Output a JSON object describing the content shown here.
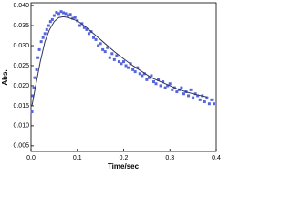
{
  "chart_data": {
    "type": "scatter",
    "xlabel": "Time/sec",
    "ylabel": "Abs.",
    "xlim": [
      0,
      0.4
    ],
    "xticks": [
      {
        "value": 0,
        "label": "0.0"
      },
      0.1,
      0.2,
      0.3,
      0.4
    ],
    "ylim": [
      0.0036,
      0.0407
    ],
    "yticks": [
      0.005,
      {
        "value": 0.01,
        "label": "0.010"
      },
      0.015,
      {
        "value": 0.02,
        "label": "0.020"
      },
      0.025,
      {
        "value": 0.03,
        "label": "0.030"
      },
      0.035,
      {
        "value": 0.04,
        "label": "0.040"
      }
    ],
    "series": [
      {
        "type": "scatter",
        "color": "#5566dd",
        "x": [
          0.002,
          0.004,
          0.006,
          0.008,
          0.012,
          0.015,
          0.018,
          0.022,
          0.026,
          0.03,
          0.034,
          0.038,
          0.042,
          0.046,
          0.05,
          0.055,
          0.06,
          0.065,
          0.07,
          0.075,
          0.08,
          0.085,
          0.09,
          0.095,
          0.1,
          0.105,
          0.11,
          0.115,
          0.12,
          0.125,
          0.13,
          0.135,
          0.14,
          0.145,
          0.15,
          0.155,
          0.16,
          0.165,
          0.17,
          0.175,
          0.18,
          0.185,
          0.19,
          0.195,
          0.2,
          0.205,
          0.21,
          0.215,
          0.22,
          0.225,
          0.23,
          0.235,
          0.24,
          0.245,
          0.25,
          0.255,
          0.26,
          0.265,
          0.27,
          0.275,
          0.28,
          0.285,
          0.29,
          0.295,
          0.3,
          0.305,
          0.31,
          0.315,
          0.32,
          0.325,
          0.33,
          0.335,
          0.34,
          0.345,
          0.35,
          0.355,
          0.36,
          0.365,
          0.37,
          0.375,
          0.38,
          0.385,
          0.39,
          0.395
        ],
        "values": [
          0.0135,
          0.0175,
          0.0195,
          0.022,
          0.024,
          0.027,
          0.029,
          0.031,
          0.032,
          0.033,
          0.034,
          0.035,
          0.036,
          0.0365,
          0.0375,
          0.0383,
          0.038,
          0.0385,
          0.0382,
          0.038,
          0.0375,
          0.0378,
          0.0368,
          0.037,
          0.0362,
          0.035,
          0.0355,
          0.0345,
          0.034,
          0.033,
          0.0335,
          0.032,
          0.0315,
          0.03,
          0.0305,
          0.029,
          0.0285,
          0.0295,
          0.027,
          0.028,
          0.0265,
          0.0275,
          0.026,
          0.0255,
          0.026,
          0.025,
          0.0245,
          0.0255,
          0.024,
          0.0235,
          0.0245,
          0.023,
          0.0225,
          0.023,
          0.0215,
          0.022,
          0.0225,
          0.021,
          0.0205,
          0.0215,
          0.02,
          0.021,
          0.0195,
          0.02,
          0.0205,
          0.019,
          0.0195,
          0.0185,
          0.019,
          0.0195,
          0.018,
          0.0185,
          0.0175,
          0.019,
          0.017,
          0.018,
          0.0175,
          0.0165,
          0.0175,
          0.016,
          0.017,
          0.0155,
          0.0165,
          0.0155
        ]
      },
      {
        "type": "line",
        "color": "#333355",
        "x": [
          0.002,
          0.01,
          0.02,
          0.03,
          0.04,
          0.05,
          0.06,
          0.07,
          0.08,
          0.1,
          0.12,
          0.14,
          0.16,
          0.18,
          0.2,
          0.22,
          0.24,
          0.26,
          0.28,
          0.3,
          0.32,
          0.34,
          0.36,
          0.38
        ],
        "values": [
          0.015,
          0.02,
          0.026,
          0.031,
          0.034,
          0.036,
          0.037,
          0.0372,
          0.037,
          0.0362,
          0.0345,
          0.0325,
          0.0305,
          0.0285,
          0.0267,
          0.025,
          0.0235,
          0.022,
          0.021,
          0.02,
          0.019,
          0.0183,
          0.0177,
          0.0172
        ]
      }
    ]
  }
}
